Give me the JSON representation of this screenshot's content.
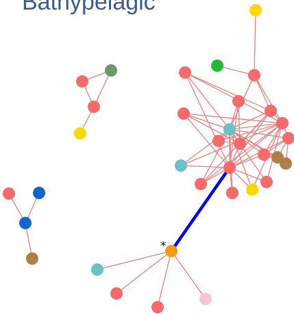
{
  "title": "Bathypelagic",
  "colors": {
    "edge": "#e88080",
    "highlight_edge": "#0000ee",
    "salmon": "#f46b6b",
    "gold": "#ffd700",
    "green": "#22bb33",
    "sage": "#6a9a6a",
    "teal": "#6ac1c6",
    "blue": "#1166cc",
    "brown": "#b07e4a",
    "orange": "#f39c12",
    "pink": "#f7c6d4"
  },
  "annotation": {
    "marker": "*",
    "node": "h"
  },
  "nodes": [
    {
      "id": "g1",
      "color": "gold"
    },
    {
      "id": "a",
      "color": "salmon"
    },
    {
      "id": "g2",
      "color": "green"
    },
    {
      "id": "b",
      "color": "salmon"
    },
    {
      "id": "c",
      "color": "salmon"
    },
    {
      "id": "d",
      "color": "salmon"
    },
    {
      "id": "e",
      "color": "salmon"
    },
    {
      "id": "f",
      "color": "salmon"
    },
    {
      "id": "hub",
      "color": "teal"
    },
    {
      "id": "i",
      "color": "salmon"
    },
    {
      "id": "j",
      "color": "salmon"
    },
    {
      "id": "k",
      "color": "salmon"
    },
    {
      "id": "l",
      "color": "salmon"
    },
    {
      "id": "m",
      "color": "brown"
    },
    {
      "id": "n",
      "color": "brown"
    },
    {
      "id": "t1",
      "color": "teal"
    },
    {
      "id": "o",
      "color": "salmon"
    },
    {
      "id": "p",
      "color": "salmon"
    },
    {
      "id": "q",
      "color": "salmon"
    },
    {
      "id": "g3",
      "color": "gold"
    },
    {
      "id": "r",
      "color": "salmon"
    },
    {
      "id": "s",
      "color": "sage"
    },
    {
      "id": "u",
      "color": "salmon"
    },
    {
      "id": "v",
      "color": "salmon"
    },
    {
      "id": "w",
      "color": "gold"
    },
    {
      "id": "x",
      "color": "salmon"
    },
    {
      "id": "y",
      "color": "blue"
    },
    {
      "id": "z",
      "color": "blue"
    },
    {
      "id": "aa",
      "color": "brown"
    },
    {
      "id": "h",
      "color": "orange"
    },
    {
      "id": "bb",
      "color": "teal"
    },
    {
      "id": "cc",
      "color": "salmon"
    },
    {
      "id": "dd",
      "color": "salmon"
    },
    {
      "id": "ee",
      "color": "pink"
    }
  ],
  "edges": [
    [
      "g1",
      "a"
    ],
    [
      "g2",
      "a"
    ],
    [
      "a",
      "hub"
    ],
    [
      "a",
      "d"
    ],
    [
      "a",
      "f"
    ],
    [
      "b",
      "hub"
    ],
    [
      "b",
      "d"
    ],
    [
      "b",
      "f"
    ],
    [
      "b",
      "o"
    ],
    [
      "c",
      "hub"
    ],
    [
      "c",
      "i"
    ],
    [
      "c",
      "o"
    ],
    [
      "d",
      "hub"
    ],
    [
      "d",
      "i"
    ],
    [
      "d",
      "f"
    ],
    [
      "d",
      "o"
    ],
    [
      "d",
      "p"
    ],
    [
      "e",
      "hub"
    ],
    [
      "e",
      "f"
    ],
    [
      "e",
      "i"
    ],
    [
      "e",
      "o"
    ],
    [
      "f",
      "hub"
    ],
    [
      "f",
      "o"
    ],
    [
      "f",
      "l"
    ],
    [
      "f",
      "j"
    ],
    [
      "i",
      "hub"
    ],
    [
      "i",
      "o"
    ],
    [
      "i",
      "k"
    ],
    [
      "j",
      "hub"
    ],
    [
      "j",
      "o"
    ],
    [
      "j",
      "l"
    ],
    [
      "j",
      "m"
    ],
    [
      "j",
      "n"
    ],
    [
      "k",
      "hub"
    ],
    [
      "k",
      "f"
    ],
    [
      "l",
      "hub"
    ],
    [
      "l",
      "o"
    ],
    [
      "l",
      "m"
    ],
    [
      "l",
      "n"
    ],
    [
      "m",
      "hub"
    ],
    [
      "n",
      "hub"
    ],
    [
      "t1",
      "hub"
    ],
    [
      "t1",
      "o"
    ],
    [
      "t1",
      "f"
    ],
    [
      "o",
      "hub"
    ],
    [
      "o",
      "p"
    ],
    [
      "o",
      "q"
    ],
    [
      "o",
      "g3"
    ],
    [
      "o",
      "r"
    ],
    [
      "p",
      "hub"
    ],
    [
      "q",
      "hub"
    ],
    [
      "g3",
      "hub"
    ],
    [
      "r",
      "hub"
    ],
    [
      "r",
      "f"
    ],
    [
      "g3",
      "f"
    ],
    [
      "p",
      "f"
    ],
    [
      "s",
      "u"
    ],
    [
      "s",
      "v"
    ],
    [
      "u",
      "v"
    ],
    [
      "v",
      "w"
    ],
    [
      "x",
      "z"
    ],
    [
      "y",
      "z"
    ],
    [
      "z",
      "aa"
    ],
    [
      "h",
      "bb"
    ],
    [
      "h",
      "cc"
    ],
    [
      "h",
      "dd"
    ],
    [
      "h",
      "ee"
    ]
  ],
  "highlight_edges": [
    [
      "h",
      "o"
    ]
  ]
}
